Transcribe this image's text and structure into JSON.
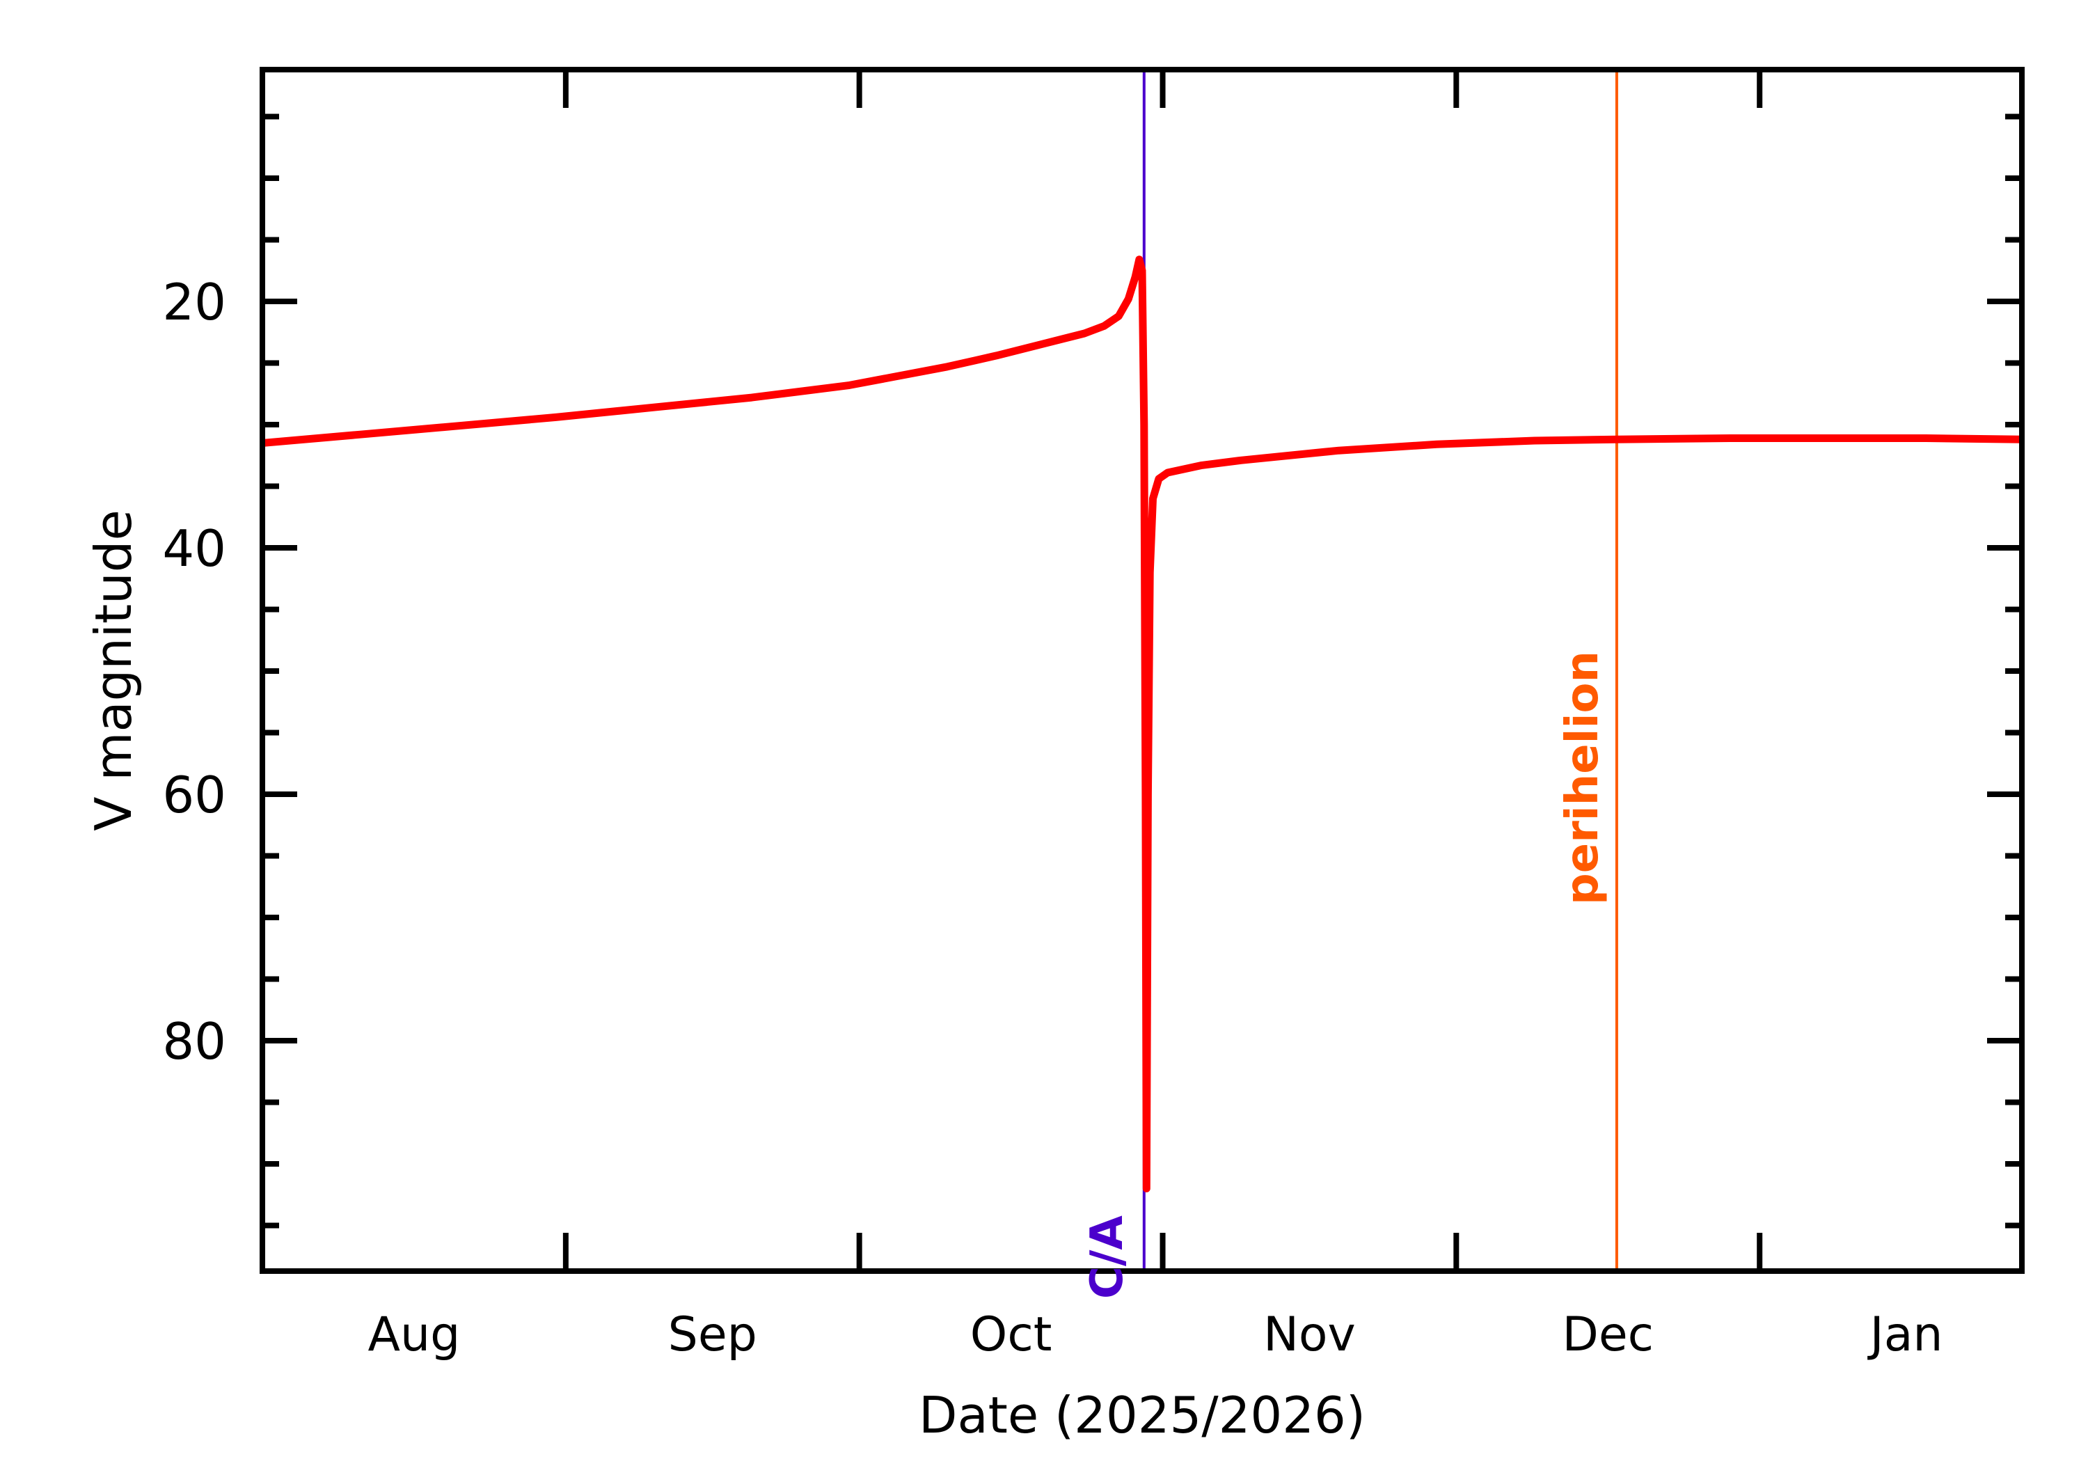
{
  "colors": {
    "background": "#ffffff",
    "axis": "#000000",
    "curve": "#ff0000",
    "closest_approach": "#4b00cc",
    "perihelion": "#ff5a00"
  },
  "chart_data": {
    "type": "line",
    "title": "",
    "xlabel": "Date (2025/2026)",
    "ylabel": "V magnitude",
    "x_unit": "days since 2025-08-01",
    "xlim": [
      0,
      179.8
    ],
    "ylim": [
      99,
      1
    ],
    "y_inverted": true,
    "grid": false,
    "legend": null,
    "x_ticks": [
      {
        "day": 31,
        "date": "2025-09-01"
      },
      {
        "day": 61,
        "date": "2025-10-01"
      },
      {
        "day": 92,
        "date": "2025-11-01"
      },
      {
        "day": 122,
        "date": "2025-12-01"
      },
      {
        "day": 153,
        "date": "2026-01-01"
      }
    ],
    "x_tick_labels": [
      {
        "label": "Aug",
        "day": 15.5
      },
      {
        "label": "Sep",
        "day": 46
      },
      {
        "label": "Oct",
        "day": 76.5
      },
      {
        "label": "Nov",
        "day": 107
      },
      {
        "label": "Dec",
        "day": 137.5
      },
      {
        "label": "Jan",
        "day": 168
      }
    ],
    "y_major_ticks": [
      20,
      40,
      60,
      80
    ],
    "y_minor_step": 5,
    "series": [
      {
        "name": "V magnitude",
        "color": "#ff0000",
        "points": [
          [
            0,
            31.5
          ],
          [
            10,
            30.8
          ],
          [
            20,
            30.1
          ],
          [
            30,
            29.4
          ],
          [
            40,
            28.6
          ],
          [
            50,
            27.8
          ],
          [
            60,
            26.8
          ],
          [
            70,
            25.3
          ],
          [
            75,
            24.4
          ],
          [
            80,
            23.4
          ],
          [
            84,
            22.6
          ],
          [
            86,
            22.0
          ],
          [
            87.5,
            21.2
          ],
          [
            88.5,
            19.8
          ],
          [
            89.2,
            18.0
          ],
          [
            89.6,
            16.6
          ],
          [
            89.9,
            17.5
          ],
          [
            90.1,
            30.0
          ],
          [
            90.25,
            60.0
          ],
          [
            90.35,
            92.0
          ],
          [
            90.5,
            60.0
          ],
          [
            90.7,
            42.0
          ],
          [
            91.0,
            36.0
          ],
          [
            91.6,
            34.4
          ],
          [
            92.5,
            33.9
          ],
          [
            96,
            33.3
          ],
          [
            100,
            32.9
          ],
          [
            110,
            32.1
          ],
          [
            120,
            31.6
          ],
          [
            130,
            31.3
          ],
          [
            138.4,
            31.2
          ],
          [
            150,
            31.1
          ],
          [
            160,
            31.1
          ],
          [
            170,
            31.1
          ],
          [
            179.8,
            31.2
          ]
        ]
      }
    ],
    "annotations": [
      {
        "label": "C/A",
        "day": 90.1,
        "date_approx": "2025-10-30",
        "color": "#4b00cc",
        "type": "vertical-line"
      },
      {
        "label": "perihelion",
        "day": 138.4,
        "date_approx": "2025-12-17",
        "color": "#ff5a00",
        "type": "vertical-line"
      }
    ]
  },
  "labels": {
    "xlabel": "Date (2025/2026)",
    "ylabel": "V magnitude",
    "ca": "C/A",
    "perihelion": "perihelion"
  }
}
